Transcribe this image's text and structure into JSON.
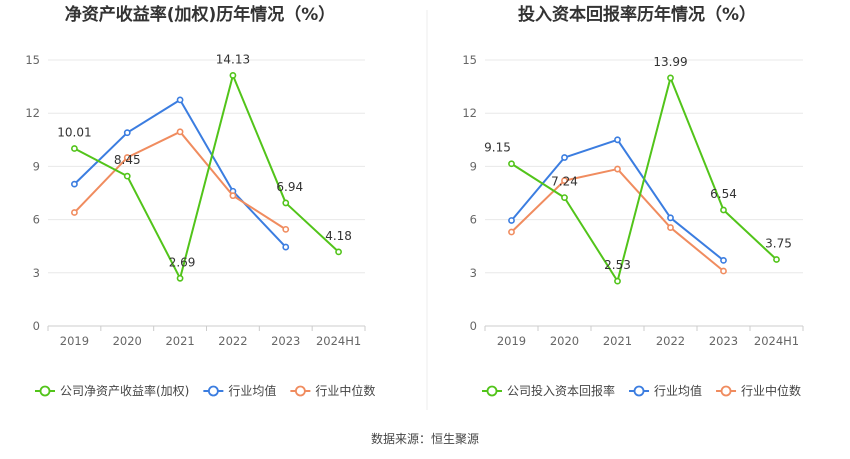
{
  "footer": {
    "source": "数据来源：恒生聚源"
  },
  "chart_data": [
    {
      "type": "line",
      "title": "净资产收益率(加权)历年情况（%）",
      "categories": [
        "2019",
        "2020",
        "2021",
        "2022",
        "2023",
        "2024H1"
      ],
      "ylim": [
        0,
        15
      ],
      "yticks": [
        0,
        3,
        6,
        9,
        12,
        15
      ],
      "grid": true,
      "legend_position": "bottom",
      "series": [
        {
          "name": "公司净资产收益率(加权)",
          "color": "#52c41a",
          "values": [
            10.01,
            8.45,
            2.69,
            14.13,
            6.94,
            4.18
          ],
          "data_labels": [
            "10.01",
            "8.45",
            "2.69",
            "14.13",
            "6.94",
            "4.18"
          ]
        },
        {
          "name": "行业均值",
          "color": "#3b7de0",
          "values": [
            8.0,
            10.9,
            12.75,
            7.6,
            4.45,
            null
          ]
        },
        {
          "name": "行业中位数",
          "color": "#f08c5f",
          "values": [
            6.4,
            9.5,
            10.95,
            7.35,
            5.45,
            null
          ]
        }
      ]
    },
    {
      "type": "line",
      "title": "投入资本回报率历年情况（%）",
      "categories": [
        "2019",
        "2020",
        "2021",
        "2022",
        "2023",
        "2024H1"
      ],
      "ylim": [
        0,
        15
      ],
      "yticks": [
        0,
        3,
        6,
        9,
        12,
        15
      ],
      "grid": true,
      "legend_position": "bottom",
      "series": [
        {
          "name": "公司投入资本回报率",
          "color": "#52c41a",
          "values": [
            9.15,
            7.24,
            2.53,
            13.99,
            6.54,
            3.75
          ],
          "data_labels": [
            "9.15",
            "7.24",
            "2.53",
            "13.99",
            "6.54",
            "3.75"
          ]
        },
        {
          "name": "行业均值",
          "color": "#3b7de0",
          "values": [
            5.95,
            9.5,
            10.5,
            6.1,
            3.7,
            null
          ]
        },
        {
          "name": "行业中位数",
          "color": "#f08c5f",
          "values": [
            5.3,
            8.2,
            8.85,
            5.55,
            3.1,
            null
          ]
        }
      ]
    }
  ]
}
